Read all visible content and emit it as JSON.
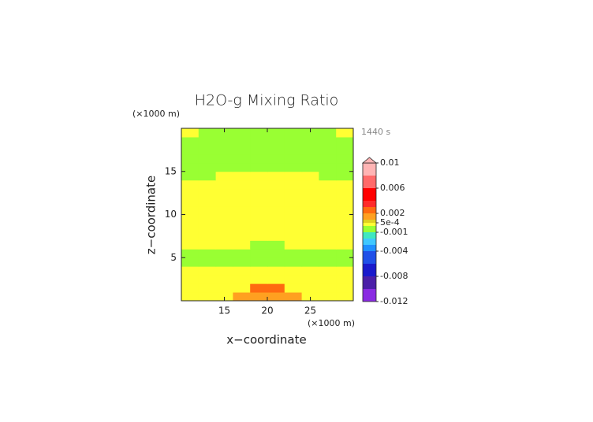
{
  "chart_data": {
    "type": "contour",
    "title": "H2O-g Mixing Ratio",
    "time_label": "1440 s",
    "x_unit": "(×1000 m)",
    "y_unit": "(×1000 m)",
    "xlabel": "x−coordinate",
    "ylabel": "z−coordinate",
    "xlim": [
      10,
      30
    ],
    "ylim": [
      0,
      20
    ],
    "xticks": [
      15,
      20,
      25
    ],
    "yticks": [
      5,
      10,
      15
    ],
    "x": [
      11,
      13,
      15,
      17,
      19,
      21,
      23,
      25,
      27,
      29
    ],
    "y": [
      0.5,
      1.5,
      2.5,
      3.5,
      4.5,
      5.5,
      6.5,
      7.5,
      8.5,
      9.5,
      10.5,
      11.5,
      12.5,
      13.5,
      14.5,
      15.5,
      16.5,
      17.5,
      18.5,
      19.5
    ],
    "z": [
      [
        0.0003,
        0.0003,
        0.0003,
        0.0015,
        0.0015,
        0.0015,
        0.0015,
        0.0003,
        0.0003,
        0.0003
      ],
      [
        0.0003,
        0.0003,
        0.0003,
        0.0003,
        0.0025,
        0.0025,
        0.0003,
        0.0003,
        0.0003,
        0.0003
      ],
      [
        0.0003,
        0.0003,
        0.0003,
        0.0003,
        0.0003,
        0.0003,
        0.0003,
        0.0003,
        0.0003,
        0.0003
      ],
      [
        0.0003,
        0.0003,
        0.0003,
        0.0003,
        0.0003,
        0.0003,
        0.0003,
        0.0003,
        0.0003,
        0.0003
      ],
      [
        -0.0003,
        -0.0003,
        -0.0003,
        -0.0003,
        -0.0003,
        -0.0003,
        -0.0003,
        -0.0003,
        -0.0003,
        -0.0003
      ],
      [
        -0.0003,
        -0.0003,
        -0.0003,
        -0.0003,
        -0.0003,
        -0.0003,
        -0.0003,
        -0.0003,
        -0.0003,
        -0.0003
      ],
      [
        0.0003,
        0.0003,
        0.0003,
        0.0003,
        -0.0003,
        -0.0003,
        0.0003,
        0.0003,
        0.0003,
        0.0003
      ],
      [
        0.0003,
        0.0003,
        0.0003,
        0.0003,
        0.0003,
        0.0003,
        0.0003,
        0.0003,
        0.0003,
        0.0003
      ],
      [
        0.0003,
        0.0003,
        0.0003,
        0.0003,
        0.0003,
        0.0003,
        0.0003,
        0.0003,
        0.0003,
        0.0003
      ],
      [
        0.0003,
        0.0003,
        0.0003,
        0.0003,
        0.0003,
        0.0003,
        0.0003,
        0.0003,
        0.0003,
        0.0003
      ],
      [
        0.0003,
        0.0003,
        0.0003,
        0.0003,
        0.0003,
        0.0003,
        0.0003,
        0.0003,
        0.0003,
        0.0003
      ],
      [
        0.0003,
        0.0003,
        0.0003,
        0.0003,
        0.0003,
        0.0003,
        0.0003,
        0.0003,
        0.0003,
        0.0003
      ],
      [
        0.0003,
        0.0003,
        0.0003,
        0.0003,
        0.0003,
        0.0003,
        0.0003,
        0.0003,
        0.0003,
        0.0003
      ],
      [
        0.0003,
        0.0003,
        0.0003,
        0.0003,
        0.0003,
        0.0003,
        0.0003,
        0.0003,
        0.0003,
        0.0003
      ],
      [
        -0.0003,
        -0.0003,
        0.0003,
        0.0003,
        0.0003,
        0.0003,
        0.0003,
        0.0003,
        -0.0003,
        -0.0003
      ],
      [
        -0.0003,
        -0.0003,
        -0.0003,
        -0.0003,
        -0.0003,
        -0.0003,
        -0.0003,
        -0.0003,
        -0.0003,
        -0.0003
      ],
      [
        -0.0003,
        -0.0003,
        -0.0003,
        -0.0003,
        -0.0003,
        -0.0003,
        -0.0003,
        -0.0003,
        -0.0003,
        -0.0003
      ],
      [
        -0.0003,
        -0.0003,
        -0.0003,
        -0.0003,
        -0.0003,
        -0.0003,
        -0.0003,
        -0.0003,
        -0.0003,
        -0.0003
      ],
      [
        -0.0003,
        -0.0003,
        -0.0003,
        -0.0003,
        -0.0003,
        -0.0003,
        -0.0003,
        -0.0003,
        -0.0003,
        -0.0003
      ],
      [
        0.0003,
        -0.0003,
        -0.0003,
        -0.0003,
        -0.0003,
        -0.0003,
        -0.0003,
        -0.0003,
        -0.0003,
        0.0003
      ]
    ],
    "clim": [
      -0.012,
      0.01
    ],
    "levels": [
      -0.012,
      -0.01,
      -0.008,
      -0.006,
      -0.004,
      -0.003,
      -0.002,
      -0.001,
      0,
      0.0005,
      0.001,
      0.002,
      0.003,
      0.004,
      0.006,
      0.008,
      0.01
    ],
    "colors": [
      "#8a2be2",
      "#4b1fa8",
      "#1a1acc",
      "#2050e8",
      "#2090ff",
      "#40c8ff",
      "#40e8c0",
      "#99ff33",
      "#ffff33",
      "#e0d020",
      "#ffa020",
      "#ff6a10",
      "#ff2a2a",
      "#ff0000",
      "#ff6a6a",
      "#ffb4b4"
    ],
    "cbar_ticks": [
      0.01,
      0.006,
      0.002,
      {
        "value": 0.0005,
        "label": "5e-4"
      },
      -0.001,
      -0.004,
      -0.008,
      -0.012
    ]
  }
}
